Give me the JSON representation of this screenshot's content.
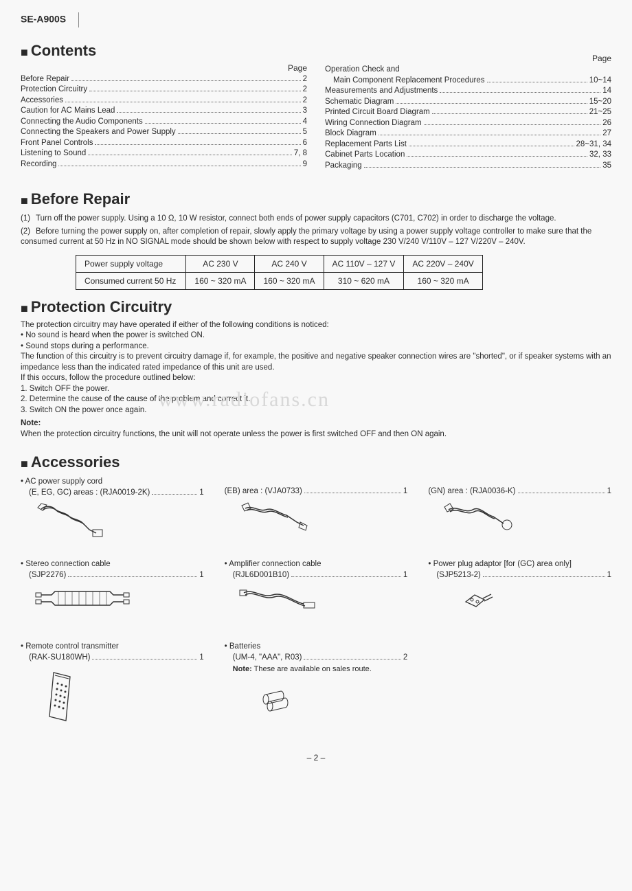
{
  "model": "SE-A900S",
  "page_label": "Page",
  "sections": {
    "contents": "Contents",
    "before_repair": "Before Repair",
    "protection": "Protection Circuitry",
    "accessories": "Accessories"
  },
  "toc_left": [
    {
      "label": "Before Repair",
      "page": "2"
    },
    {
      "label": "Protection Circuitry",
      "page": "2"
    },
    {
      "label": "Accessories",
      "page": "2"
    },
    {
      "label": "Caution for AC Mains Lead",
      "page": "3"
    },
    {
      "label": "Connecting the Audio Components",
      "page": "4"
    },
    {
      "label": "Connecting the Speakers and Power Supply",
      "page": "5"
    },
    {
      "label": "Front Panel Controls",
      "page": "6"
    },
    {
      "label": "Listening to Sound",
      "page": "7, 8"
    },
    {
      "label": "Recording",
      "page": "9"
    }
  ],
  "toc_right": [
    {
      "label": "Operation Check and",
      "page": "",
      "nodots": true
    },
    {
      "label": "Main Component Replacement Procedures",
      "page": "10~14",
      "indent": true
    },
    {
      "label": "Measurements and Adjustments",
      "page": "14"
    },
    {
      "label": "Schematic Diagram",
      "page": "15~20"
    },
    {
      "label": "Printed Circuit Board Diagram",
      "page": "21~25"
    },
    {
      "label": "Wiring Connection Diagram",
      "page": "26"
    },
    {
      "label": "Block Diagram",
      "page": "27"
    },
    {
      "label": "Replacement Parts List",
      "page": "28~31, 34"
    },
    {
      "label": "Cabinet Parts Location",
      "page": "32, 33"
    },
    {
      "label": "Packaging",
      "page": "35"
    }
  ],
  "before_repair": {
    "item1_num": "(1)",
    "item1": "Turn off the power supply. Using a 10 Ω, 10 W resistor, connect both ends of power supply capacitors (C701, C702) in order to discharge the voltage.",
    "item2_num": "(2)",
    "item2": "Before turning the power supply on, after completion of repair, slowly apply the primary voltage by using a power supply voltage controller to make sure that the consumed current at 50 Hz in NO SIGNAL mode should be shown below with respect to supply voltage 230 V/240 V/110V – 127 V/220V – 240V."
  },
  "power_table": {
    "h0": "Power supply voltage",
    "h1": "AC 230 V",
    "h2": "AC 240 V",
    "h3": "AC 110V – 127 V",
    "h4": "AC 220V – 240V",
    "r0": "Consumed current 50 Hz",
    "v1": "160 ~ 320 mA",
    "v2": "160 ~ 320 mA",
    "v3": "310 ~ 620 mA",
    "v4": "160 ~ 320 mA"
  },
  "protection": {
    "intro": "The protection circuitry may have operated if either of the following conditions is noticed:",
    "b1": "No sound is heard when the power is switched ON.",
    "b2": "Sound stops during a performance.",
    "p1": "The function of this circuitry is to prevent circuitry damage if, for example, the positive and negative speaker connection wires are \"shorted\", or if speaker systems with an impedance less than the indicated rated impedance of this unit are used.",
    "p2": "If this occurs, follow the procedure outlined below:",
    "s1": "1. Switch OFF the power.",
    "s2": "2. Determine the cause of the cause of the problem and correct it.",
    "s3": "3. Switch ON the power once again.",
    "note_label": "Note:",
    "note": "When the protection circuitry functions, the unit will not operate unless the power is first switched OFF and then ON again."
  },
  "watermark": "www.radiofans.cn",
  "accessories": {
    "power_cord": {
      "title": "AC power supply cord",
      "sub": "(E, EG, GC) areas : (RJA0019-2K)",
      "qty": "1"
    },
    "eb": {
      "sub": "(EB) area : (VJA0733)",
      "qty": "1"
    },
    "gn": {
      "sub": "(GN) area : (RJA0036-K)",
      "qty": "1"
    },
    "stereo": {
      "title": "Stereo connection cable",
      "sub": "(SJP2276)",
      "qty": "1"
    },
    "amp": {
      "title": "Amplifier connection cable",
      "sub": "(RJL6D001B10)",
      "qty": "1"
    },
    "adaptor": {
      "title": "Power plug adaptor [for (GC) area only]",
      "sub": "(SJP5213-2)",
      "qty": "1"
    },
    "remote": {
      "title": "Remote control transmitter",
      "sub": "(RAK-SU180WH)",
      "qty": "1"
    },
    "batteries": {
      "title": "Batteries",
      "sub": "(UM-4, \"AAA\", R03)",
      "qty": "2",
      "note_lbl": "Note:",
      "note": "These are available on sales route."
    }
  },
  "page_number": "– 2 –"
}
